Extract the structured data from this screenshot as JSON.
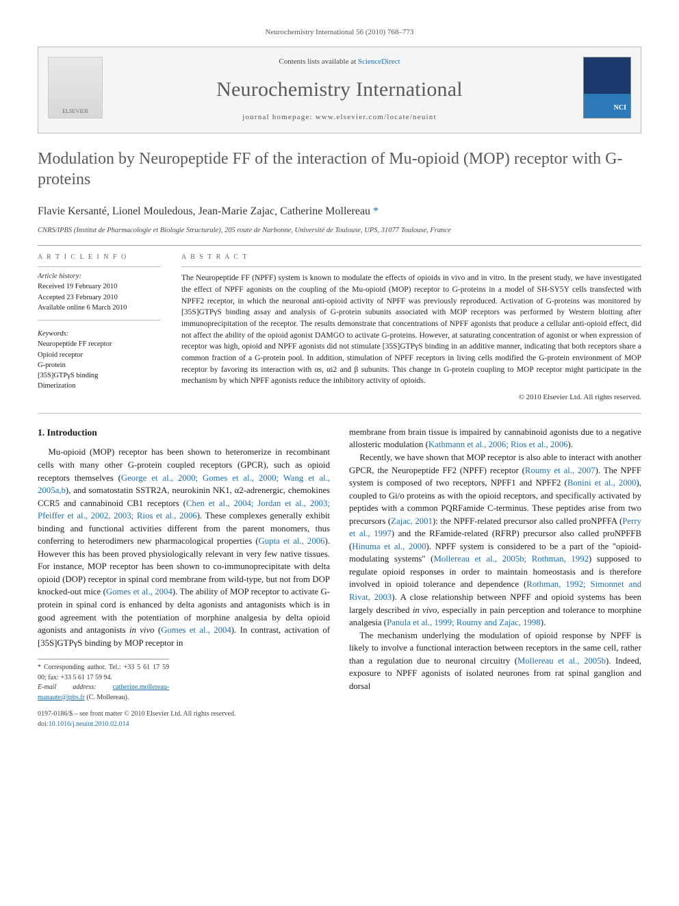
{
  "header_bar": "Neurochemistry International 56 (2010) 768–773",
  "banner": {
    "contents_prefix": "Contents lists available at ",
    "contents_link": "ScienceDirect",
    "journal_name": "Neurochemistry International",
    "homepage_label": "journal homepage: www.elsevier.com/locate/neuint",
    "elsevier_label": "ELSEVIER"
  },
  "title": "Modulation by Neuropeptide FF of the interaction of Mu-opioid (MOP) receptor with G-proteins",
  "authors_line": "Flavie Kersanté, Lionel Mouledous, Jean-Marie Zajac, Catherine Mollereau",
  "corr_mark": "*",
  "affiliation": "CNRS/IPBS (Institut de Pharmacologie et Biologie Structurale), 205 route de Narbonne, Université de Toulouse, UPS, 31077 Toulouse, France",
  "article_info_label": "A R T I C L E   I N F O",
  "abstract_label": "A B S T R A C T",
  "history": {
    "head": "Article history:",
    "received": "Received 19 February 2010",
    "accepted": "Accepted 23 February 2010",
    "online": "Available online 6 March 2010"
  },
  "keywords": {
    "head": "Keywords:",
    "items": [
      "Neuropeptide FF receptor",
      "Opioid receptor",
      "G-protein",
      "[35S]GTPγS binding",
      "Dimerization"
    ]
  },
  "abstract": "The Neuropeptide FF (NPFF) system is known to modulate the effects of opioids in vivo and in vitro. In the present study, we have investigated the effect of NPFF agonists on the coupling of the Mu-opioid (MOP) receptor to G-proteins in a model of SH-SY5Y cells transfected with NPFF2 receptor, in which the neuronal anti-opioid activity of NPFF was previously reproduced. Activation of G-proteins was monitored by [35S]GTPγS binding assay and analysis of G-protein subunits associated with MOP receptors was performed by Western blotting after immunoprecipitation of the receptor. The results demonstrate that concentrations of NPFF agonists that produce a cellular anti-opioid effect, did not affect the ability of the opioid agonist DAMGO to activate G-proteins. However, at saturating concentration of agonist or when expression of receptor was high, opioid and NPFF agonists did not stimulate [35S]GTPγS binding in an additive manner, indicating that both receptors share a common fraction of a G-protein pool. In addition, stimulation of NPFF receptors in living cells modified the G-protein environment of MOP receptor by favoring its interaction with αs, αi2 and β subunits. This change in G-protein coupling to MOP receptor might participate in the mechanism by which NPFF agonists reduce the inhibitory activity of opioids.",
  "copyright": "© 2010 Elsevier Ltd. All rights reserved.",
  "intro_heading": "1. Introduction",
  "col1": {
    "p1a": "Mu-opioid (MOP) receptor has been shown to heteromerize in recombinant cells with many other G-protein coupled receptors (GPCR), such as opioid receptors themselves (",
    "r1": "George et al., 2000; Gomes et al., 2000; Wang et al., 2005a,b",
    "p1b": "), and somatostatin SSTR2A, neurokinin NK1, α2-adrenergic, chemokines CCR5 and cannabinoid CB1 receptors (",
    "r2": "Chen et al., 2004; Jordan et al., 2003; Pfeiffer et al., 2002, 2003; Rios et al., 2006",
    "p1c": "). These complexes generally exhibit binding and functional activities different from the parent monomers, thus conferring to heterodimers new pharmacological properties (",
    "r3": "Gupta et al., 2006",
    "p1d": "). However this has been proved physiologically relevant in very few native tissues. For instance, MOP receptor has been shown to co-immunoprecipitate with delta opioid (DOP) receptor in spinal cord membrane from wild-type, but not from DOP knocked-out mice (",
    "r4": "Gomes et al., 2004",
    "p1e": "). The ability of MOP receptor to activate G-protein in spinal cord is enhanced by delta agonists and antagonists which is in good agreement with the potentiation of morphine analgesia by delta opioid agonists and antagonists ",
    "iv": "in vivo",
    "p1f": " (",
    "r5": "Gomes et al., 2004",
    "p1g": "). In contrast, activation of [35S]GTPγS binding by MOP receptor in"
  },
  "col2": {
    "p1a": "membrane from brain tissue is impaired by cannabinoid agonists due to a negative allosteric modulation (",
    "r1": "Kathmann et al., 2006; Rios et al., 2006",
    "p1b": ").",
    "p2a": "Recently, we have shown that MOP receptor is also able to interact with another GPCR, the Neuropeptide FF2 (NPFF) receptor (",
    "r2": "Roumy et al., 2007",
    "p2b": "). The NPFF system is composed of two receptors, NPFF1 and NPFF2 (",
    "r3": "Bonini et al., 2000",
    "p2c": "), coupled to Gi/o proteins as with the opioid receptors, and specifically activated by peptides with a common PQRFamide C-terminus. These peptides arise from two precursors (",
    "r4": "Zajac, 2001",
    "p2d": "): the NPFF-related precursor also called proNPFFA (",
    "r5": "Perry et al., 1997",
    "p2e": ") and the RFamide-related (RFRP) precursor also called proNPFFB (",
    "r6": "Hinuma et al., 2000",
    "p2f": "). NPFF system is considered to be a part of the \"opioid-modulating systems\" (",
    "r7": "Mollereau et al., 2005b; Rothman, 1992",
    "p2g": ") supposed to regulate opioid responses in order to maintain homeostasis and is therefore involved in opioid tolerance and dependence (",
    "r8": "Rothman, 1992; Simonnet and Rivat, 2003",
    "p2h": "). A close relationship between NPFF and opioid systems has been largely described ",
    "iv2": "in vivo",
    "p2i": ", especially in pain perception and tolerance to morphine analgesia (",
    "r9": "Panula et al., 1999; Roumy and Zajac, 1998",
    "p2j": ").",
    "p3a": "The mechanism underlying the modulation of opioid response by NPFF is likely to involve a functional interaction between receptors in the same cell, rather than a regulation due to neuronal circuitry (",
    "r10": "Mollereau et al., 2005b",
    "p3b": "). Indeed, exposure to NPFF agonists of isolated neurones from rat spinal ganglion and dorsal"
  },
  "footnote": {
    "corr_label": "* Corresponding author. Tel.: +33 5 61 17 59 00; fax: +33 5 61 17 59 94.",
    "email_label": "E-mail address:",
    "email": "catherine.mollereau-manaute@ipbs.fr",
    "email_suffix": "(C. Mollereau)."
  },
  "bottom": {
    "line1": "0197-0186/$ – see front matter © 2010 Elsevier Ltd. All rights reserved.",
    "doi_label": "doi:",
    "doi": "10.1016/j.neuint.2010.02.014"
  },
  "colors": {
    "link": "#1b6fb3",
    "heading_gray": "#5a5a5a"
  }
}
